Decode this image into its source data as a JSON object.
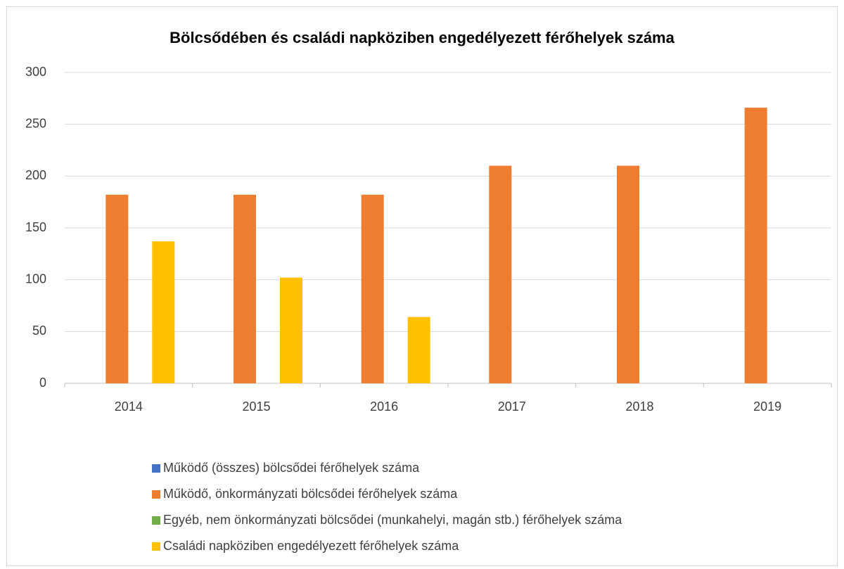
{
  "chart_data": {
    "type": "bar",
    "title": "Bölcsődében és családi napköziben engedélyezett férőhelyek száma",
    "categories": [
      "2014",
      "2015",
      "2016",
      "2017",
      "2018",
      "2019"
    ],
    "series": [
      {
        "name": "Működő (összes) bölcsődei férőhelyek száma",
        "color": "#4472c4",
        "values": [
          null,
          null,
          null,
          null,
          null,
          null
        ]
      },
      {
        "name": "Működő, önkormányzati bölcsődei férőhelyek száma",
        "color": "#ed7d31",
        "values": [
          182,
          182,
          182,
          210,
          210,
          266
        ]
      },
      {
        "name": "Egyéb, nem önkormányzati bölcsődei (munkahelyi, magán stb.) férőhelyek száma",
        "color": "#70ad47",
        "values": [
          null,
          null,
          null,
          null,
          null,
          null
        ]
      },
      {
        "name": "Családi napköziben engedélyezett férőhelyek száma",
        "color": "#ffc000",
        "values": [
          137,
          102,
          64,
          null,
          null,
          null
        ]
      }
    ],
    "ylim": [
      0,
      300
    ],
    "yticks": [
      0,
      50,
      100,
      150,
      200,
      250,
      300
    ],
    "grid": true,
    "legend": "bottom"
  }
}
